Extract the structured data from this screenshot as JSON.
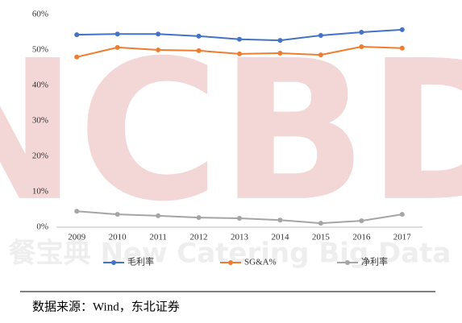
{
  "chart_data": {
    "type": "line",
    "categories": [
      "2009",
      "2010",
      "2011",
      "2012",
      "2013",
      "2014",
      "2015",
      "2016",
      "2017"
    ],
    "series": [
      {
        "name": "毛利率",
        "color": "#4472c4",
        "values": [
          54.3,
          54.5,
          54.5,
          53.9,
          53.0,
          52.7,
          54.1,
          55.0,
          55.7
        ]
      },
      {
        "name": "SG&A%",
        "color": "#ed7d31",
        "values": [
          48.0,
          50.7,
          50.0,
          49.8,
          48.9,
          49.1,
          48.6,
          50.9,
          50.5
        ]
      },
      {
        "name": "净利率",
        "color": "#a5a5a5",
        "values": [
          4.5,
          3.6,
          3.2,
          2.7,
          2.5,
          2.0,
          1.1,
          1.8,
          3.6
        ]
      }
    ],
    "ylim": [
      0,
      60
    ],
    "yticks": [
      {
        "value": 0,
        "label": "0%"
      },
      {
        "value": 10,
        "label": "10%"
      },
      {
        "value": 20,
        "label": "20%"
      },
      {
        "value": 30,
        "label": "30%"
      },
      {
        "value": 40,
        "label": "40%"
      },
      {
        "value": 50,
        "label": "50%"
      },
      {
        "value": 60,
        "label": "60%"
      }
    ],
    "grid": false,
    "legend": "bottom",
    "watermark": [
      "NCBD",
      "餐宝典 New Catering Big Data"
    ]
  },
  "source": "数据来源：Wind，东北证券"
}
